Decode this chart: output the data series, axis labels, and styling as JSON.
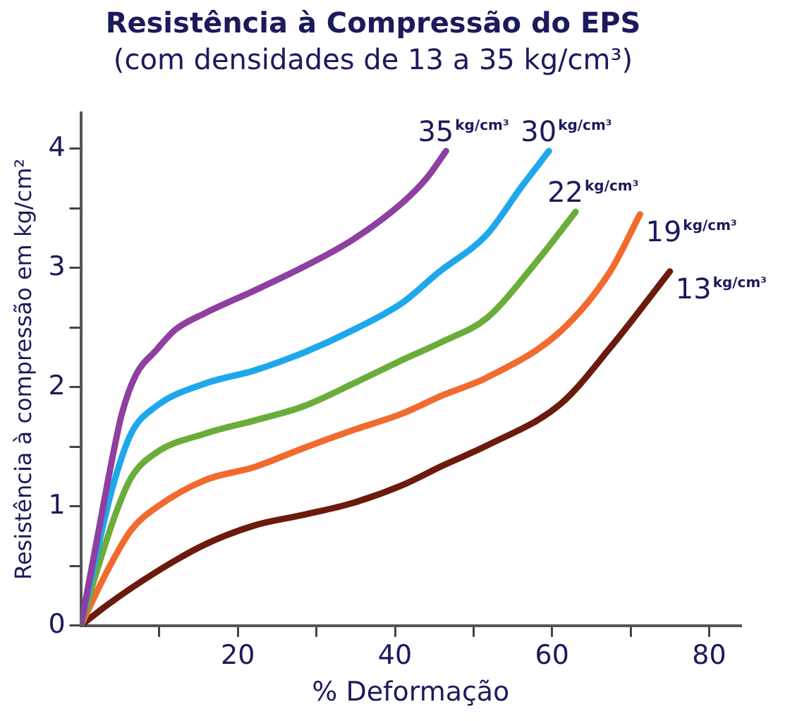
{
  "chart_data": {
    "type": "line",
    "title": "Resistência à Compressão do EPS",
    "subtitle": "(com densidades de 13 a 35 kg/cm³)",
    "xlabel": "% Deformação",
    "ylabel": "Resistência à compressão em kg/cm²",
    "xlim": [
      0,
      84
    ],
    "ylim": [
      0,
      4.3
    ],
    "xticks": [
      {
        "value": 10,
        "label": null
      },
      20,
      {
        "value": 30,
        "label": null
      },
      40,
      {
        "value": 50,
        "label": null
      },
      60,
      {
        "value": 70,
        "label": null
      },
      80
    ],
    "yticks": [
      0,
      {
        "value": 0.5,
        "label": null
      },
      1,
      {
        "value": 1.5,
        "label": null
      },
      2,
      {
        "value": 2.5,
        "label": null
      },
      3,
      {
        "value": 3.5,
        "label": null
      },
      4
    ],
    "grid": false,
    "legend": false,
    "marker": "none",
    "line_style": "solid",
    "series": [
      {
        "name": "35$^{kg/cm³}$",
        "color": "#8e3fa0",
        "x": [
          0,
          2,
          4,
          5.2,
          7,
          9.6,
          12,
          15.8,
          22.1,
          28.4,
          34.7,
          41,
          44,
          46.5
        ],
        "values": [
          0,
          0.7,
          1.4,
          1.77,
          2.1,
          2.31,
          2.48,
          2.62,
          2.81,
          3.01,
          3.24,
          3.55,
          3.75,
          3.98
        ]
      },
      {
        "name": "30$^{kg/cm³}$",
        "color": "#1ea8ec",
        "x": [
          0,
          2,
          4,
          6.4,
          9.6,
          15.8,
          22.1,
          28.4,
          34.7,
          41,
          45.5,
          51.7,
          56,
          59.6
        ],
        "values": [
          0,
          0.6,
          1.15,
          1.61,
          1.84,
          2.03,
          2.14,
          2.29,
          2.48,
          2.71,
          2.96,
          3.28,
          3.67,
          3.98
        ]
      },
      {
        "name": "22$^{kg/cm³}$",
        "color": "#6aad3a",
        "x": [
          0,
          2,
          4.5,
          6.4,
          9.6,
          15.8,
          22.1,
          28.4,
          34.7,
          41,
          46,
          51.7,
          58,
          63
        ],
        "values": [
          0,
          0.45,
          0.95,
          1.24,
          1.45,
          1.61,
          1.72,
          1.84,
          2.03,
          2.23,
          2.38,
          2.58,
          3.05,
          3.47
        ]
      },
      {
        "name": "19$^{kg/cm³}$",
        "color": "#f26a2e",
        "x": [
          0,
          3.3,
          6.4,
          9.6,
          15.8,
          22.1,
          28.4,
          34.7,
          41,
          46,
          51.7,
          61.1,
          67.4,
          71.2
        ],
        "values": [
          0,
          0.45,
          0.8,
          0.99,
          1.22,
          1.33,
          1.49,
          1.64,
          1.78,
          1.93,
          2.08,
          2.47,
          2.97,
          3.45
        ]
      },
      {
        "name": "13$^{kg/cm³}$",
        "color": "#6b1a0c",
        "x": [
          0,
          3.3,
          9.6,
          15.8,
          22.1,
          28.4,
          34.7,
          41,
          46,
          51.7,
          61.1,
          67.4,
          75
        ],
        "values": [
          0,
          0.17,
          0.45,
          0.68,
          0.84,
          0.93,
          1.03,
          1.18,
          1.34,
          1.51,
          1.86,
          2.33,
          2.97
        ]
      }
    ]
  }
}
